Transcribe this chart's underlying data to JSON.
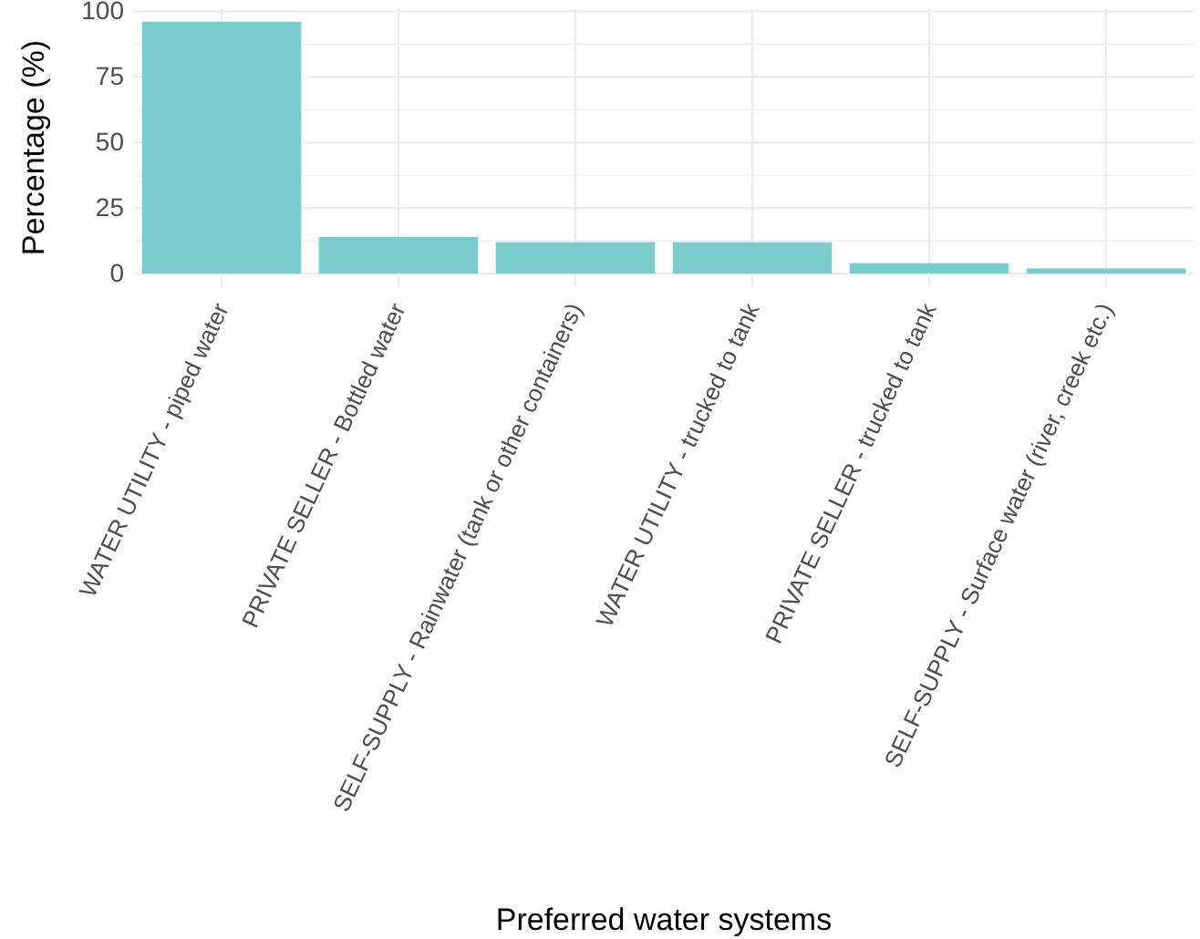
{
  "chart_data": {
    "type": "bar",
    "xlabel": "Preferred water systems",
    "ylabel": "Percentage (%)",
    "categories": [
      "WATER UTILITY - piped water",
      "PRIVATE SELLER - Bottled water",
      "SELF-SUPPLY - Rainwater (tank or other containers)",
      "WATER UTILITY - trucked to tank",
      "PRIVATE SELLER - trucked to tank",
      "SELF-SUPPLY - Surface water (river, creek etc.)"
    ],
    "values": [
      96,
      14,
      12,
      12,
      4,
      2
    ],
    "color": "#7acdcc",
    "ylim": [
      -4.8,
      100.8
    ],
    "yticks": [
      0,
      {
        "value": 12.5,
        "label": null
      },
      25,
      {
        "value": 37.5,
        "label": null
      },
      50,
      {
        "value": 62.5,
        "label": null
      },
      75,
      {
        "value": 87.5,
        "label": null
      },
      100
    ],
    "grid": true
  }
}
